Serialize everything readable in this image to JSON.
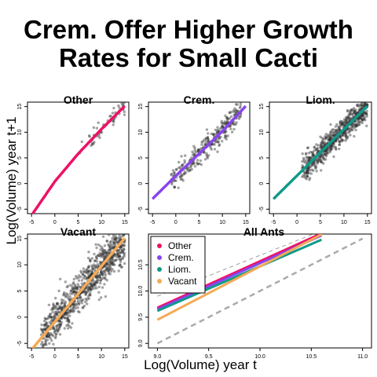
{
  "title": [
    "Crem. Offer Higher Growth",
    "Rates for Small Cacti"
  ],
  "xlabel": "Log(Volume) year t",
  "ylabel": "Log(Volume) year t+1",
  "colors": {
    "other": "#ee1166",
    "crem": "#8844ee",
    "liom": "#119988",
    "vacant": "#f4aa55",
    "points": "#333333",
    "reference": "#aaaaaa"
  },
  "chart_data": [
    {
      "type": "scatter",
      "panel": "Other",
      "title": "Other",
      "xlim": [
        -5,
        15
      ],
      "ylim": [
        -5,
        15
      ],
      "xticks": [
        -5,
        0,
        5,
        10,
        15
      ],
      "yticks": [
        -5,
        0,
        5,
        10,
        15
      ],
      "fit": {
        "name": "Other",
        "color": "#ee1166",
        "x": [
          -5,
          0,
          5,
          10,
          15
        ],
        "y": [
          -6.2,
          0.4,
          5.8,
          10.6,
          15.1
        ]
      },
      "points": {
        "x_range": [
          5,
          15
        ],
        "y_range": [
          1,
          15
        ],
        "count": 60
      }
    },
    {
      "type": "scatter",
      "panel": "Crem.",
      "title": "Crem.",
      "xlim": [
        -5,
        15
      ],
      "ylim": [
        -5,
        15
      ],
      "xticks": [
        -5,
        0,
        5,
        10,
        15
      ],
      "yticks": [
        -5,
        0,
        5,
        10,
        15
      ],
      "fit": {
        "name": "Crem.",
        "color": "#8844ee",
        "x": [
          -5,
          0,
          5,
          10,
          15
        ],
        "y": [
          -3,
          1.5,
          5.8,
          10.2,
          15.1
        ]
      },
      "points": {
        "x_range": [
          -1,
          14
        ],
        "y_range": [
          -1,
          15
        ],
        "count": 300
      }
    },
    {
      "type": "scatter",
      "panel": "Liom.",
      "title": "Liom.",
      "xlim": [
        -5,
        15
      ],
      "ylim": [
        -5,
        15
      ],
      "xticks": [
        -5,
        0,
        5,
        10,
        15
      ],
      "yticks": [
        -5,
        0,
        5,
        10,
        15
      ],
      "fit": {
        "name": "Liom.",
        "color": "#119988",
        "x": [
          -5,
          15
        ],
        "y": [
          -3,
          15.1
        ]
      },
      "points": {
        "x_range": [
          1,
          15
        ],
        "y_range": [
          -1,
          15
        ],
        "count": 700
      }
    },
    {
      "type": "scatter",
      "panel": "Vacant",
      "title": "Vacant",
      "xlim": [
        -5,
        15
      ],
      "ylim": [
        -5,
        15
      ],
      "xticks": [
        -5,
        0,
        5,
        10,
        15
      ],
      "yticks": [
        -5,
        0,
        5,
        10,
        15
      ],
      "fit": {
        "name": "Vacant",
        "color": "#f4aa55",
        "x": [
          -5,
          15
        ],
        "y": [
          -6.2,
          15.1
        ]
      },
      "points": {
        "x_range": [
          -3,
          15
        ],
        "y_range": [
          -3,
          15
        ],
        "count": 900
      }
    },
    {
      "type": "line",
      "panel": "All Ants",
      "title": "All Ants",
      "xlim": [
        9,
        11
      ],
      "ylim": [
        9,
        11
      ],
      "xticks": [
        9.0,
        9.5,
        10.0,
        10.5,
        11.0
      ],
      "yticks": [
        9.0,
        9.5,
        10.0,
        10.5
      ],
      "legend": {
        "position": "top-left",
        "entries": [
          "Other",
          "Crem.",
          "Liom.",
          "Vacant"
        ]
      },
      "series": [
        {
          "name": "Other",
          "color": "#ee1166",
          "x": [
            9,
            10.6
          ],
          "y": [
            9.68,
            11.1
          ]
        },
        {
          "name": "Crem.",
          "color": "#8844ee",
          "x": [
            9,
            10.6
          ],
          "y": [
            9.65,
            11.06
          ]
        },
        {
          "name": "Liom.",
          "color": "#119988",
          "x": [
            9,
            10.6
          ],
          "y": [
            9.62,
            10.98
          ]
        },
        {
          "name": "Vacant",
          "color": "#f4aa55",
          "x": [
            9,
            10.6
          ],
          "y": [
            9.45,
            11.08
          ]
        }
      ],
      "reference_lines": [
        {
          "style": "dashed",
          "x": [
            9,
            11
          ],
          "y": [
            9,
            11
          ]
        },
        {
          "style": "thin-dashed",
          "x": [
            9,
            10.6
          ],
          "y": [
            9.9,
            11.15
          ]
        }
      ]
    }
  ]
}
